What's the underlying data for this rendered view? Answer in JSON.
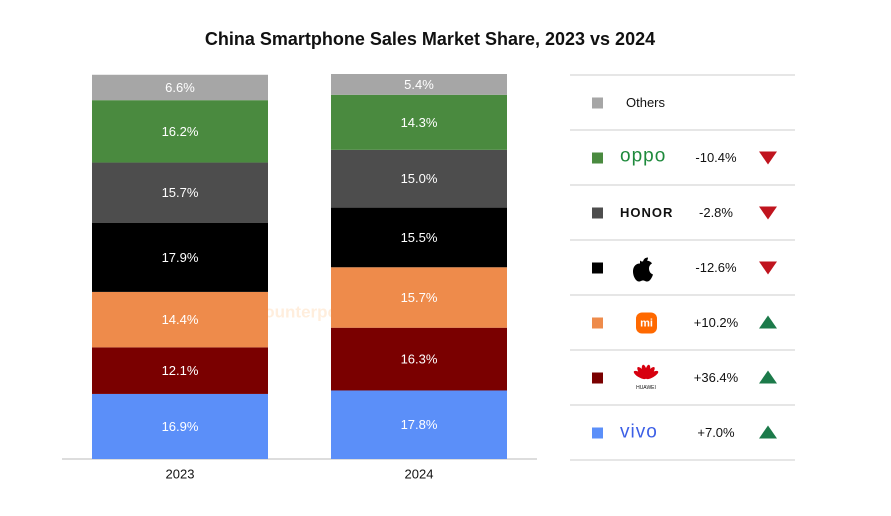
{
  "chart_data": {
    "type": "stacked_bar",
    "title": "China Smartphone Sales Market Share, 2023 vs 2024",
    "watermark": "Counterpoint",
    "categories": [
      "2023",
      "2024"
    ],
    "ylim": [
      0,
      100
    ],
    "series": [
      {
        "name": "vivo",
        "color": "#5b8ff9",
        "values": [
          16.9,
          17.8
        ],
        "value_labels": [
          "16.9%",
          "17.8%"
        ],
        "change": {
          "value": 7.0,
          "label": "+7.0%"
        }
      },
      {
        "name": "HUAWEI",
        "color": "#7a0000",
        "values": [
          12.1,
          16.3
        ],
        "value_labels": [
          "12.1%",
          "16.3%"
        ],
        "change": {
          "value": 36.4,
          "label": "+36.4%"
        }
      },
      {
        "name": "mi",
        "color": "#ee8b4b",
        "values": [
          14.4,
          15.7
        ],
        "value_labels": [
          "14.4%",
          "15.7%"
        ],
        "change": {
          "value": 10.2,
          "label": "+10.2%"
        }
      },
      {
        "name": null,
        "color": "#000000",
        "values": [
          17.9,
          15.5
        ],
        "value_labels": [
          "17.9%",
          "15.5%"
        ],
        "change": {
          "value": -12.6,
          "label": "-12.6%"
        }
      },
      {
        "name": "HONOR",
        "color": "#4d4d4d",
        "values": [
          15.7,
          15.0
        ],
        "value_labels": [
          "15.7%",
          "15.0%"
        ],
        "change": {
          "value": -2.8,
          "label": "-2.8%"
        }
      },
      {
        "name": "oppo",
        "color": "#4a8a3f",
        "values": [
          16.2,
          14.3
        ],
        "value_labels": [
          "16.2%",
          "14.3%"
        ],
        "change": {
          "value": -10.4,
          "label": "-10.4%"
        }
      },
      {
        "name": "Others",
        "color": "#a6a6a6",
        "values": [
          6.6,
          5.4
        ],
        "value_labels": [
          "6.6%",
          "5.4%"
        ]
      }
    ]
  }
}
